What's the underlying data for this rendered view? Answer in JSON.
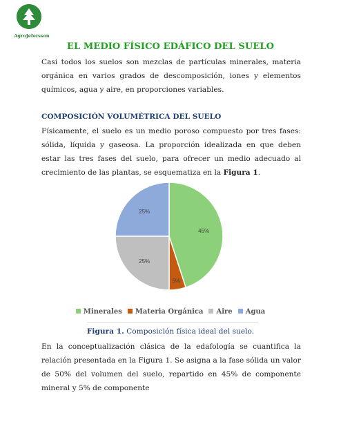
{
  "logo": {
    "text": "AgroJefersson"
  },
  "title": "EL MEDIO FÍSICO EDÁFICO DEL SUELO",
  "intro": "Casi todos los suelos son mezclas de partículas minerales, materia orgánica en varios grados de descomposición, iones y elementos químicos, agua y aire, en proporciones variables.",
  "section_heading": "COMPOSICIÓN VOLUMÉTRICA DEL SUELO",
  "section_text_pre": "Físicamente, el suelo es un medio poroso compuesto por tres fases: sólida, líquida y gaseosa. La proporción idealizada en que deben estar las tres fases del suelo, para ofrecer un medio adecuado al crecimiento de las plantas, se esquematiza en la ",
  "section_text_ref": "Figura 1",
  "section_text_post": ".",
  "caption_label": "Figura 1.",
  "caption_text": " Composición física ideal del suelo.",
  "closing": "En la conceptualización clásica de la edafología se cuantifica la relación presentada en la Figura 1. Se asigna a la fase sólida un valor de 50% del volumen del suelo, repartido en 45% de componente mineral y 5% de componente",
  "chart_data": {
    "type": "pie",
    "categories": [
      "Minerales",
      "Materia Orgánica",
      "Aire",
      "Agua"
    ],
    "values": [
      45,
      5,
      25,
      25
    ],
    "labels": [
      "45%",
      "5%",
      "25%",
      "25%"
    ],
    "colors": [
      "#8cd17a",
      "#c55a11",
      "#bfbfbf",
      "#8eaadb"
    ],
    "legend_position": "bottom"
  }
}
